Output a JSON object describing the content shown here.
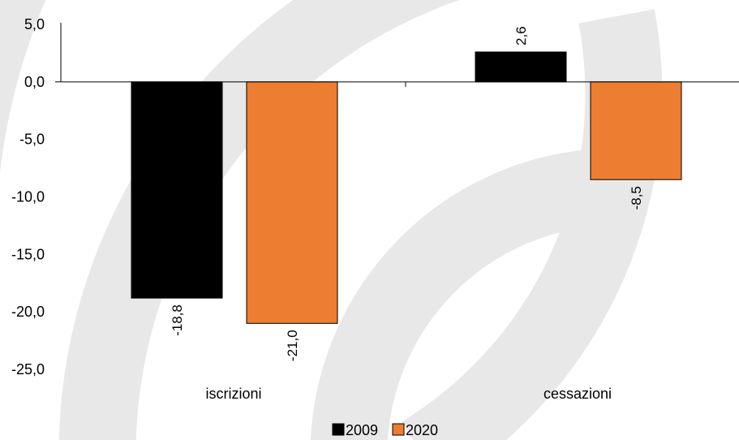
{
  "chart_data": {
    "type": "bar",
    "categories": [
      "iscrizioni",
      "cessazioni"
    ],
    "series": [
      {
        "name": "2009",
        "values": [
          -18.8,
          2.6
        ],
        "labels": [
          "-18,8",
          "2,6"
        ],
        "color": "#000000"
      },
      {
        "name": "2020",
        "values": [
          -21.0,
          -8.5
        ],
        "labels": [
          "-21,0",
          "-8,5"
        ],
        "color": "#ED7D31"
      }
    ],
    "ylim": [
      -25,
      5
    ],
    "yticks": [
      5,
      0,
      -5,
      -10,
      -15,
      -20,
      -25
    ],
    "ytick_labels": [
      "5,0",
      "0,0",
      "-5,0",
      "-10,0",
      "-15,0",
      "-20,0",
      "-25,0"
    ],
    "title": "",
    "xlabel": "",
    "ylabel": "",
    "grid": false,
    "legend_position": "bottom-center",
    "background_watermark": "grey concentric arcs"
  }
}
